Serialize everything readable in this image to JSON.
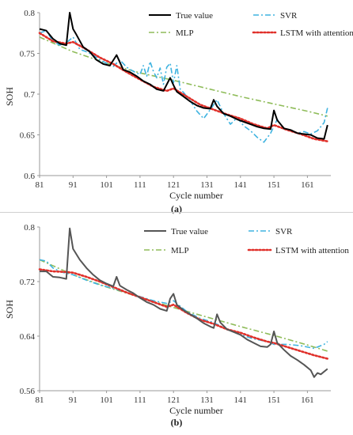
{
  "chart_data": [
    {
      "type": "line",
      "caption": "(a)",
      "xlabel": "Cycle number",
      "ylabel": "SOH",
      "xlim": [
        81,
        168
      ],
      "ylim": [
        0.6,
        0.8
      ],
      "xticks": [
        81,
        91,
        101,
        111,
        121,
        131,
        141,
        151,
        161
      ],
      "yticks": [
        0.6,
        0.65,
        0.7,
        0.75,
        0.8
      ],
      "ytick_labels": [
        "0.6",
        "0.65",
        "0.7",
        "0.75",
        "0.8"
      ],
      "grid": false,
      "legend_position": "top-right",
      "series": [
        {
          "name": "True value",
          "color": "#000000",
          "style": "solid",
          "x": [
            81,
            83,
            85,
            87,
            89,
            90,
            91,
            92,
            94,
            96,
            98,
            100,
            102,
            104,
            106,
            108,
            110,
            112,
            114,
            116,
            118,
            120,
            121,
            122,
            124,
            126,
            128,
            130,
            132,
            133,
            134,
            136,
            138,
            140,
            142,
            144,
            146,
            148,
            150,
            151,
            152,
            154,
            156,
            158,
            160,
            162,
            164,
            166,
            167
          ],
          "y": [
            0.78,
            0.778,
            0.768,
            0.762,
            0.76,
            0.8,
            0.78,
            0.773,
            0.758,
            0.752,
            0.742,
            0.737,
            0.735,
            0.748,
            0.73,
            0.727,
            0.722,
            0.716,
            0.712,
            0.706,
            0.704,
            0.72,
            0.711,
            0.703,
            0.697,
            0.691,
            0.686,
            0.683,
            0.682,
            0.693,
            0.685,
            0.676,
            0.673,
            0.669,
            0.666,
            0.663,
            0.66,
            0.658,
            0.657,
            0.68,
            0.668,
            0.658,
            0.656,
            0.652,
            0.651,
            0.65,
            0.646,
            0.645,
            0.662
          ]
        },
        {
          "name": "SVR",
          "color": "#3fb3e0",
          "style": "dashdot",
          "x": [
            81,
            83,
            85,
            87,
            89,
            91,
            93,
            95,
            97,
            99,
            101,
            103,
            105,
            107,
            109,
            111,
            112,
            113,
            114,
            115,
            116,
            117,
            118,
            119,
            120,
            121,
            122,
            123,
            124,
            125,
            126,
            128,
            130,
            132,
            134,
            136,
            138,
            140,
            142,
            144,
            146,
            148,
            150,
            152,
            154,
            156,
            158,
            160,
            162,
            164,
            166,
            167
          ],
          "y": [
            0.775,
            0.778,
            0.765,
            0.76,
            0.763,
            0.77,
            0.755,
            0.752,
            0.748,
            0.742,
            0.738,
            0.734,
            0.742,
            0.733,
            0.728,
            0.724,
            0.735,
            0.722,
            0.74,
            0.728,
            0.72,
            0.732,
            0.712,
            0.733,
            0.738,
            0.714,
            0.735,
            0.706,
            0.702,
            0.697,
            0.692,
            0.679,
            0.67,
            0.681,
            0.693,
            0.676,
            0.663,
            0.671,
            0.661,
            0.655,
            0.647,
            0.641,
            0.652,
            0.669,
            0.657,
            0.655,
            0.652,
            0.654,
            0.651,
            0.655,
            0.665,
            0.683
          ]
        },
        {
          "name": "MLP",
          "color": "#8fbc5a",
          "style": "dashdot",
          "x": [
            81,
            91,
            101,
            111,
            121,
            131,
            141,
            151,
            161,
            167
          ],
          "y": [
            0.77,
            0.752,
            0.738,
            0.726,
            0.717,
            0.707,
            0.697,
            0.688,
            0.679,
            0.673
          ]
        },
        {
          "name": "LSTM with attention",
          "color": "#e0302a",
          "style": "dotted",
          "x": [
            81,
            85,
            89,
            91,
            95,
            99,
            103,
            107,
            111,
            115,
            119,
            121,
            125,
            129,
            133,
            137,
            141,
            145,
            149,
            151,
            155,
            159,
            163,
            167
          ],
          "y": [
            0.775,
            0.765,
            0.762,
            0.764,
            0.755,
            0.745,
            0.737,
            0.727,
            0.718,
            0.709,
            0.704,
            0.707,
            0.697,
            0.687,
            0.681,
            0.675,
            0.67,
            0.663,
            0.658,
            0.662,
            0.656,
            0.651,
            0.645,
            0.642
          ]
        }
      ]
    },
    {
      "type": "line",
      "caption": "(b)",
      "xlabel": "Cycle number",
      "ylabel": "SOH",
      "xlim": [
        81,
        168
      ],
      "ylim": [
        0.56,
        0.8
      ],
      "xticks": [
        81,
        91,
        101,
        111,
        121,
        131,
        141,
        151,
        161
      ],
      "yticks": [
        0.56,
        0.64,
        0.72,
        0.8
      ],
      "ytick_labels": [
        "0.56",
        "0.64",
        "0.72",
        "0.8"
      ],
      "grid": false,
      "legend_position": "top-right",
      "series": [
        {
          "name": "True value",
          "color": "#555555",
          "style": "solid",
          "x": [
            81,
            83,
            85,
            87,
            89,
            90,
            91,
            93,
            95,
            97,
            99,
            101,
            103,
            104,
            105,
            107,
            109,
            111,
            113,
            115,
            117,
            119,
            120,
            121,
            122,
            124,
            126,
            128,
            130,
            132,
            133,
            134,
            135,
            137,
            139,
            141,
            143,
            145,
            147,
            149,
            150,
            151,
            152,
            154,
            156,
            158,
            160,
            162,
            163,
            164,
            165,
            167
          ],
          "y": [
            0.735,
            0.735,
            0.727,
            0.726,
            0.724,
            0.798,
            0.768,
            0.752,
            0.74,
            0.73,
            0.722,
            0.717,
            0.713,
            0.727,
            0.714,
            0.708,
            0.703,
            0.696,
            0.69,
            0.686,
            0.68,
            0.677,
            0.695,
            0.702,
            0.686,
            0.678,
            0.672,
            0.666,
            0.659,
            0.654,
            0.652,
            0.672,
            0.66,
            0.65,
            0.646,
            0.642,
            0.635,
            0.63,
            0.625,
            0.624,
            0.628,
            0.647,
            0.63,
            0.62,
            0.611,
            0.605,
            0.598,
            0.59,
            0.58,
            0.586,
            0.584,
            0.592
          ]
        },
        {
          "name": "SVR",
          "color": "#3fb3e0",
          "style": "dashdot",
          "x": [
            81,
            83,
            85,
            87,
            89,
            91,
            95,
            99,
            103,
            107,
            111,
            115,
            119,
            121,
            125,
            129,
            133,
            137,
            141,
            145,
            149,
            151,
            155,
            159,
            163,
            166,
            167
          ],
          "y": [
            0.752,
            0.75,
            0.74,
            0.735,
            0.732,
            0.73,
            0.722,
            0.715,
            0.71,
            0.704,
            0.698,
            0.692,
            0.688,
            0.692,
            0.676,
            0.666,
            0.66,
            0.65,
            0.642,
            0.636,
            0.632,
            0.628,
            0.628,
            0.626,
            0.622,
            0.628,
            0.632
          ]
        },
        {
          "name": "MLP",
          "color": "#8fbc5a",
          "style": "dashdot",
          "x": [
            81,
            91,
            101,
            111,
            121,
            131,
            141,
            151,
            161,
            167
          ],
          "y": [
            0.752,
            0.73,
            0.712,
            0.697,
            0.682,
            0.668,
            0.654,
            0.641,
            0.627,
            0.618
          ]
        },
        {
          "name": "LSTM with attention",
          "color": "#e0302a",
          "style": "dotted",
          "x": [
            81,
            85,
            89,
            91,
            95,
            99,
            103,
            107,
            111,
            115,
            119,
            121,
            125,
            129,
            133,
            137,
            141,
            145,
            149,
            151,
            155,
            159,
            163,
            167
          ],
          "y": [
            0.738,
            0.735,
            0.734,
            0.733,
            0.727,
            0.72,
            0.712,
            0.704,
            0.697,
            0.69,
            0.683,
            0.686,
            0.674,
            0.664,
            0.658,
            0.65,
            0.645,
            0.638,
            0.632,
            0.63,
            0.624,
            0.618,
            0.612,
            0.607
          ]
        }
      ]
    }
  ]
}
